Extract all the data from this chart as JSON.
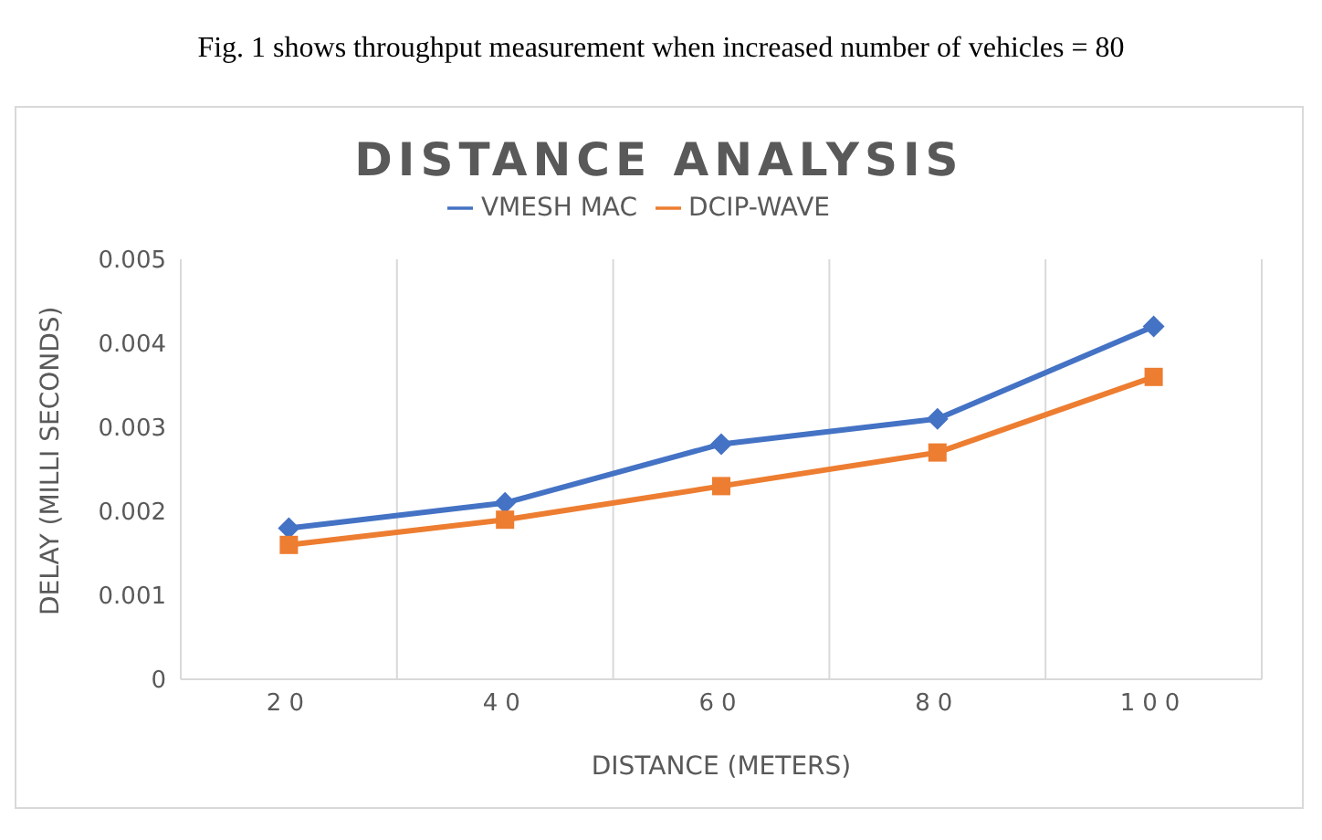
{
  "chart_data": {
    "type": "line",
    "title": "DISTANCE ANALYSIS",
    "xlabel": "DISTANCE (METERS)",
    "ylabel": "DELAY (MILLI SECONDS)",
    "annotations": [
      "Fig. 1 shows throughput measurement when increased number of vehicles = 80"
    ],
    "categories": [
      "20",
      "40",
      "60",
      "80",
      "100"
    ],
    "series": [
      {
        "name": "VMESH MAC",
        "color": "#4472c4",
        "marker": "diamond",
        "values": [
          0.0018,
          0.0021,
          0.0028,
          0.0031,
          0.0042
        ]
      },
      {
        "name": "DCIP-WAVE",
        "color": "#ed7d31",
        "marker": "square",
        "values": [
          0.0016,
          0.0019,
          0.0023,
          0.0027,
          0.0036
        ]
      }
    ],
    "ylim": [
      0,
      0.005
    ],
    "yticks": [
      0,
      0.001,
      0.002,
      0.003,
      0.004,
      0.005
    ],
    "grid": "x",
    "legend": "top",
    "line_style": "solid"
  }
}
